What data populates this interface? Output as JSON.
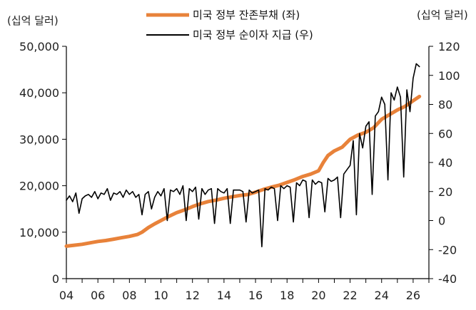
{
  "chart_data": {
    "type": "line",
    "left_unit_label": "(십억 달러)",
    "right_unit_label": "(십억 달러)",
    "x_tick_labels": [
      "04",
      "06",
      "08",
      "10",
      "12",
      "14",
      "16",
      "18",
      "20",
      "22",
      "24",
      "26"
    ],
    "xlim": [
      2004,
      2027
    ],
    "left_axis": {
      "ylim": [
        0,
        50000
      ],
      "ticks": [
        0,
        10000,
        20000,
        30000,
        40000,
        50000
      ],
      "tick_labels": [
        "0",
        "10,000",
        "20,000",
        "30,000",
        "40,000",
        "50,000"
      ]
    },
    "right_axis": {
      "ylim": [
        -40,
        120
      ],
      "ticks": [
        -40,
        -20,
        0,
        20,
        40,
        60,
        80,
        100,
        120
      ],
      "tick_labels": [
        "-40",
        "-20",
        "0",
        "20",
        "40",
        "60",
        "80",
        "100",
        "120"
      ]
    },
    "legend_position": "top-center",
    "series": [
      {
        "name": "미국 정부 잔존부채 (좌)",
        "axis": "left",
        "color": "#E8823A",
        "points": [
          [
            2004.0,
            7000
          ],
          [
            2004.5,
            7200
          ],
          [
            2005.0,
            7400
          ],
          [
            2005.5,
            7700
          ],
          [
            2006.0,
            8000
          ],
          [
            2006.5,
            8200
          ],
          [
            2007.0,
            8500
          ],
          [
            2007.5,
            8800
          ],
          [
            2008.0,
            9100
          ],
          [
            2008.5,
            9500
          ],
          [
            2008.8,
            10000
          ],
          [
            2009.2,
            11000
          ],
          [
            2009.6,
            11800
          ],
          [
            2010.0,
            12500
          ],
          [
            2010.5,
            13400
          ],
          [
            2011.0,
            14200
          ],
          [
            2011.5,
            14800
          ],
          [
            2012.0,
            15500
          ],
          [
            2012.5,
            16100
          ],
          [
            2013.0,
            16600
          ],
          [
            2013.5,
            16900
          ],
          [
            2014.0,
            17300
          ],
          [
            2014.5,
            17600
          ],
          [
            2015.0,
            17900
          ],
          [
            2015.5,
            18100
          ],
          [
            2016.0,
            18600
          ],
          [
            2016.5,
            19200
          ],
          [
            2017.0,
            19700
          ],
          [
            2017.5,
            20100
          ],
          [
            2018.0,
            20700
          ],
          [
            2018.5,
            21300
          ],
          [
            2019.0,
            22000
          ],
          [
            2019.5,
            22500
          ],
          [
            2020.0,
            23200
          ],
          [
            2020.3,
            25000
          ],
          [
            2020.6,
            26500
          ],
          [
            2021.0,
            27500
          ],
          [
            2021.5,
            28300
          ],
          [
            2022.0,
            30000
          ],
          [
            2022.5,
            30900
          ],
          [
            2023.0,
            31500
          ],
          [
            2023.5,
            32500
          ],
          [
            2024.0,
            34300
          ],
          [
            2024.5,
            35300
          ],
          [
            2025.0,
            36300
          ],
          [
            2025.5,
            37100
          ],
          [
            2026.0,
            38300
          ],
          [
            2026.4,
            39200
          ]
        ]
      },
      {
        "name": "미국 정부 순이자 지급 (우)",
        "axis": "right",
        "color": "#000000",
        "points": [
          [
            2004.0,
            14
          ],
          [
            2004.2,
            17
          ],
          [
            2004.4,
            13
          ],
          [
            2004.6,
            19
          ],
          [
            2004.8,
            5
          ],
          [
            2005.0,
            15
          ],
          [
            2005.2,
            17
          ],
          [
            2005.4,
            18
          ],
          [
            2005.6,
            16
          ],
          [
            2005.8,
            20
          ],
          [
            2006.0,
            15
          ],
          [
            2006.2,
            19
          ],
          [
            2006.4,
            18
          ],
          [
            2006.6,
            22
          ],
          [
            2006.8,
            14
          ],
          [
            2007.0,
            19
          ],
          [
            2007.2,
            18
          ],
          [
            2007.4,
            20
          ],
          [
            2007.6,
            16
          ],
          [
            2007.8,
            21
          ],
          [
            2008.0,
            18
          ],
          [
            2008.2,
            20
          ],
          [
            2008.4,
            16
          ],
          [
            2008.6,
            18
          ],
          [
            2008.8,
            4
          ],
          [
            2009.0,
            18
          ],
          [
            2009.2,
            20
          ],
          [
            2009.4,
            8
          ],
          [
            2009.6,
            16
          ],
          [
            2009.8,
            20
          ],
          [
            2010.0,
            17
          ],
          [
            2010.2,
            22
          ],
          [
            2010.4,
            0
          ],
          [
            2010.6,
            21
          ],
          [
            2010.8,
            20
          ],
          [
            2011.0,
            22
          ],
          [
            2011.2,
            18
          ],
          [
            2011.4,
            24
          ],
          [
            2011.6,
            0
          ],
          [
            2011.8,
            22
          ],
          [
            2012.0,
            20
          ],
          [
            2012.2,
            23
          ],
          [
            2012.4,
            1
          ],
          [
            2012.6,
            22
          ],
          [
            2012.8,
            18
          ],
          [
            2013.0,
            21
          ],
          [
            2013.2,
            22
          ],
          [
            2013.4,
            -2
          ],
          [
            2013.6,
            22
          ],
          [
            2013.8,
            20
          ],
          [
            2014.0,
            19
          ],
          [
            2014.2,
            22
          ],
          [
            2014.4,
            -2
          ],
          [
            2014.6,
            21
          ],
          [
            2014.8,
            21
          ],
          [
            2015.0,
            21
          ],
          [
            2015.2,
            20
          ],
          [
            2015.4,
            -1
          ],
          [
            2015.6,
            21
          ],
          [
            2015.8,
            19
          ],
          [
            2016.0,
            20
          ],
          [
            2016.2,
            21
          ],
          [
            2016.4,
            -18
          ],
          [
            2016.6,
            22
          ],
          [
            2016.8,
            21
          ],
          [
            2017.0,
            23
          ],
          [
            2017.2,
            22
          ],
          [
            2017.4,
            0
          ],
          [
            2017.6,
            24
          ],
          [
            2017.8,
            22
          ],
          [
            2018.0,
            24
          ],
          [
            2018.2,
            23
          ],
          [
            2018.4,
            -1
          ],
          [
            2018.6,
            26
          ],
          [
            2018.8,
            24
          ],
          [
            2019.0,
            28
          ],
          [
            2019.2,
            27
          ],
          [
            2019.4,
            2
          ],
          [
            2019.6,
            28
          ],
          [
            2019.8,
            25
          ],
          [
            2020.0,
            27
          ],
          [
            2020.2,
            26
          ],
          [
            2020.4,
            6
          ],
          [
            2020.6,
            29
          ],
          [
            2020.8,
            27
          ],
          [
            2021.0,
            28
          ],
          [
            2021.2,
            30
          ],
          [
            2021.4,
            2
          ],
          [
            2021.6,
            32
          ],
          [
            2021.8,
            35
          ],
          [
            2022.0,
            38
          ],
          [
            2022.2,
            55
          ],
          [
            2022.4,
            4
          ],
          [
            2022.6,
            60
          ],
          [
            2022.8,
            50
          ],
          [
            2023.0,
            65
          ],
          [
            2023.2,
            68
          ],
          [
            2023.4,
            18
          ],
          [
            2023.6,
            72
          ],
          [
            2023.8,
            75
          ],
          [
            2024.0,
            85
          ],
          [
            2024.2,
            80
          ],
          [
            2024.4,
            28
          ],
          [
            2024.6,
            88
          ],
          [
            2024.8,
            83
          ],
          [
            2025.0,
            92
          ],
          [
            2025.2,
            85
          ],
          [
            2025.4,
            30
          ],
          [
            2025.6,
            90
          ],
          [
            2025.8,
            75
          ],
          [
            2026.0,
            98
          ],
          [
            2026.2,
            108
          ],
          [
            2026.4,
            106
          ]
        ]
      }
    ]
  }
}
